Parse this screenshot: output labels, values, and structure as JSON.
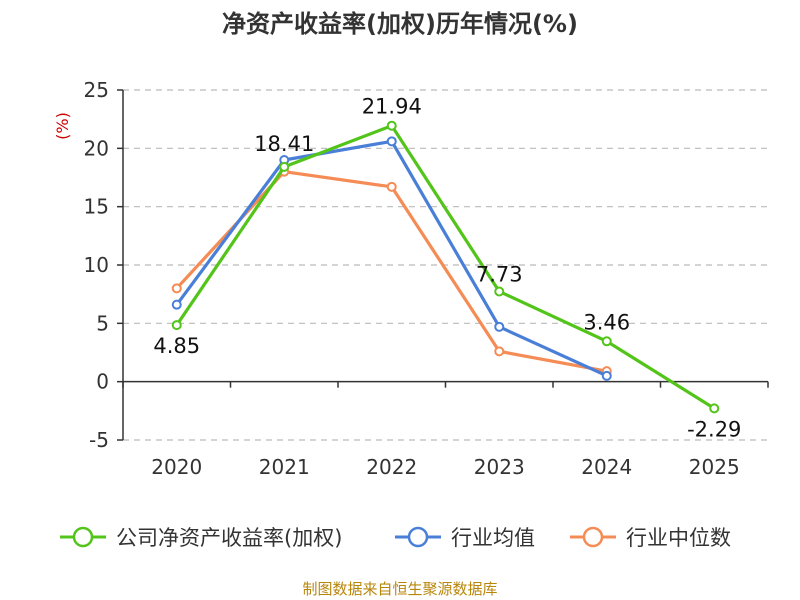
{
  "chart_data": {
    "type": "line",
    "title": "净资产收益率(加权)历年情况(%)",
    "ylabel": "(%)",
    "categories": [
      "2020",
      "2021",
      "2022",
      "2023",
      "2024",
      "2025"
    ],
    "ylim": [
      -5,
      25
    ],
    "yticks": [
      25,
      20,
      15,
      10,
      5,
      0,
      -5
    ],
    "grid": true,
    "legend_position": "bottom",
    "series": [
      {
        "name": "公司净资产收益率(加权)",
        "color": "#52c41a",
        "values": [
          4.85,
          18.41,
          21.94,
          7.73,
          3.46,
          -2.29
        ]
      },
      {
        "name": "行业均值",
        "color": "#4a7fd8",
        "values": [
          6.6,
          19.0,
          20.6,
          4.7,
          0.5,
          null
        ]
      },
      {
        "name": "行业中位数",
        "color": "#f58b55",
        "values": [
          8.0,
          18.0,
          16.7,
          2.6,
          0.9,
          null
        ]
      }
    ],
    "data_labels": [
      "4.85",
      "18.41",
      "21.94",
      "7.73",
      "3.46",
      "-2.29"
    ]
  },
  "source": "制图数据来自恒生聚源数据库"
}
